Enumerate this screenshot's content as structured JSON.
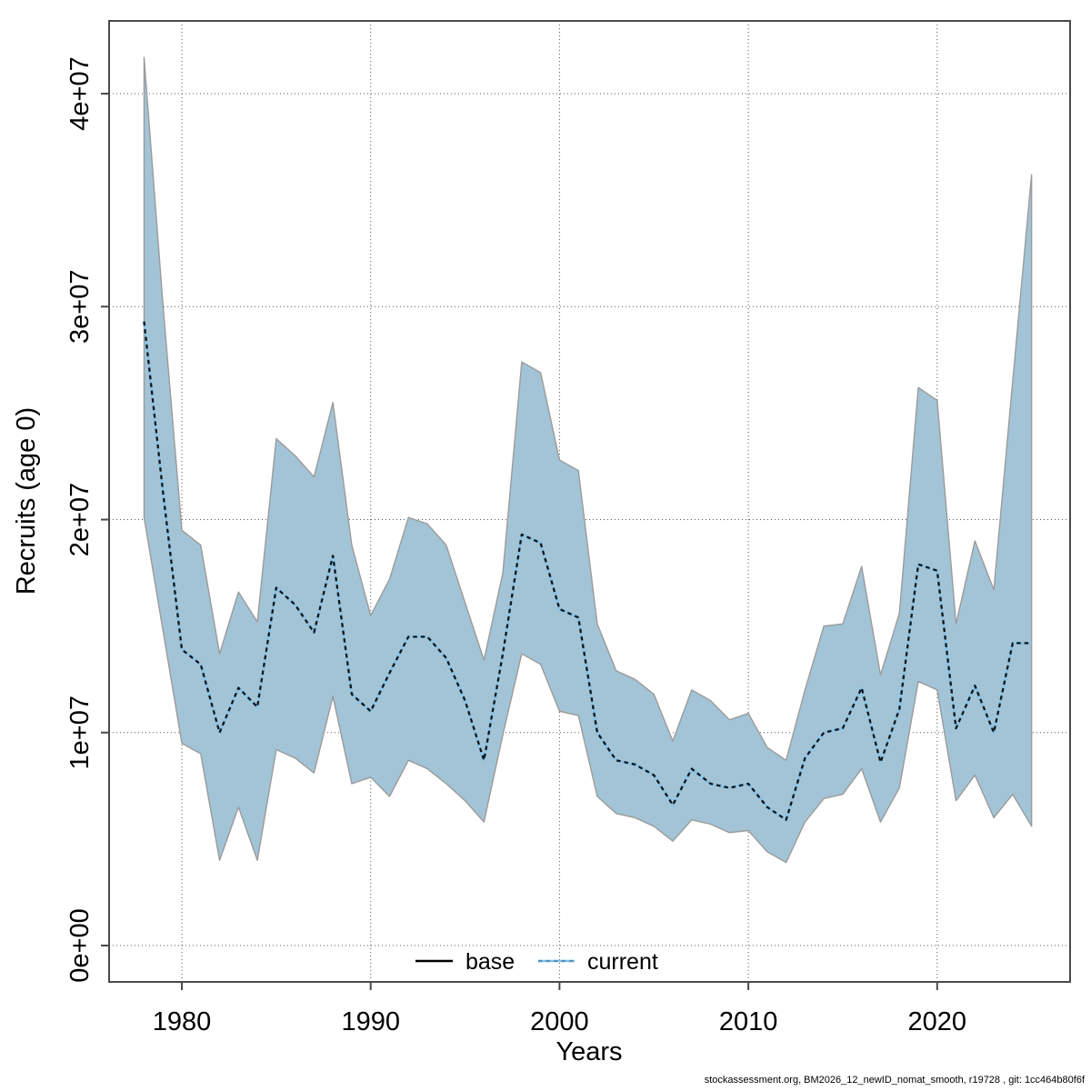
{
  "footer": {
    "text": "stockassessment.org, BM2026_12_newID_nomat_smooth, r19728 , git: 1cc464b80f6f"
  },
  "colors": {
    "background": "#ffffff",
    "band_fill": "#a2c4d6",
    "band_edge": "#9b9b9b",
    "line_underlay": "#87c1e3",
    "line_dash": "#0b1620",
    "base_line": "#000000",
    "grid": "#555555",
    "frame": "#4a4a4a",
    "text": "#000000"
  },
  "chart_data": {
    "type": "line",
    "subtype": "line-with-confidence-band",
    "title": "",
    "xlabel": "Years",
    "ylabel": "Recruits (age 0)",
    "x_tick_labels": [
      "1980",
      "1990",
      "2000",
      "2010",
      "2020"
    ],
    "x_tick_years": [
      1980,
      1990,
      2000,
      2010,
      2020
    ],
    "y_tick_labels": [
      "0e+00",
      "1e+07",
      "2e+07",
      "3e+07",
      "4e+07"
    ],
    "y_tick_values_millions": [
      0,
      10,
      20,
      30,
      40
    ],
    "xlim": [
      1976.2,
      2027.0
    ],
    "ylim_millions": [
      -1.7,
      43.4
    ],
    "grid": "dotted",
    "value_scale": "values given in millions of recruits (1 = 1e+06)",
    "legend": {
      "position": "bottom-center-inside",
      "entries": [
        {
          "label": "base",
          "style": "solid",
          "color": "#000000"
        },
        {
          "label": "current",
          "style": "dashed",
          "color": "#4d94bd"
        }
      ]
    },
    "years": [
      1978,
      1979,
      1980,
      1981,
      1982,
      1983,
      1984,
      1985,
      1986,
      1987,
      1988,
      1989,
      1990,
      1991,
      1992,
      1993,
      1994,
      1995,
      1996,
      1997,
      1998,
      1999,
      2000,
      2001,
      2002,
      2003,
      2004,
      2005,
      2006,
      2007,
      2008,
      2009,
      2010,
      2011,
      2012,
      2013,
      2014,
      2015,
      2016,
      2017,
      2018,
      2019,
      2020,
      2021,
      2022,
      2023,
      2024,
      2025
    ],
    "series": [
      {
        "name": "current",
        "role": "estimate",
        "values_millions": [
          29.3,
          21.3,
          13.9,
          13.2,
          10.0,
          12.1,
          11.2,
          16.8,
          16.0,
          14.7,
          18.3,
          11.8,
          11.0,
          12.8,
          14.5,
          14.5,
          13.5,
          11.5,
          8.7,
          13.7,
          19.3,
          18.9,
          15.8,
          15.4,
          10.0,
          8.7,
          8.5,
          8.0,
          6.6,
          8.3,
          7.6,
          7.4,
          7.6,
          6.5,
          5.9,
          8.8,
          10.0,
          10.2,
          12.1,
          8.6,
          11.1,
          17.9,
          17.6,
          10.2,
          12.2,
          10.0,
          14.2,
          14.2
        ]
      },
      {
        "name": "current_ci_lower",
        "role": "confidence-band-lower",
        "values_millions": [
          20.1,
          14.8,
          9.5,
          9.0,
          4.0,
          6.5,
          4.0,
          9.2,
          8.8,
          8.1,
          11.7,
          7.6,
          7.9,
          7.0,
          8.7,
          8.3,
          7.6,
          6.8,
          5.8,
          9.9,
          13.7,
          13.2,
          11.0,
          10.8,
          7.0,
          6.2,
          6.0,
          5.6,
          4.9,
          5.9,
          5.7,
          5.3,
          5.4,
          4.4,
          3.9,
          5.8,
          6.9,
          7.1,
          8.3,
          5.8,
          7.4,
          12.4,
          12.0,
          6.8,
          8.0,
          6.0,
          7.1,
          5.6
        ]
      },
      {
        "name": "current_ci_upper",
        "role": "confidence-band-upper",
        "values_millions": [
          41.7,
          30.1,
          19.5,
          18.8,
          13.7,
          16.6,
          15.2,
          23.8,
          23.0,
          22.0,
          25.5,
          18.8,
          15.5,
          17.2,
          20.1,
          19.8,
          18.8,
          16.1,
          13.4,
          17.5,
          27.4,
          26.9,
          22.8,
          22.3,
          15.1,
          12.9,
          12.5,
          11.8,
          9.6,
          12.0,
          11.5,
          10.6,
          10.9,
          9.3,
          8.7,
          12.0,
          15.0,
          15.1,
          17.8,
          12.7,
          15.6,
          26.2,
          25.6,
          15.1,
          19.0,
          16.7,
          26.5,
          36.2
        ]
      }
    ],
    "note": "base series line is not visible in plot area; only shown in legend"
  }
}
